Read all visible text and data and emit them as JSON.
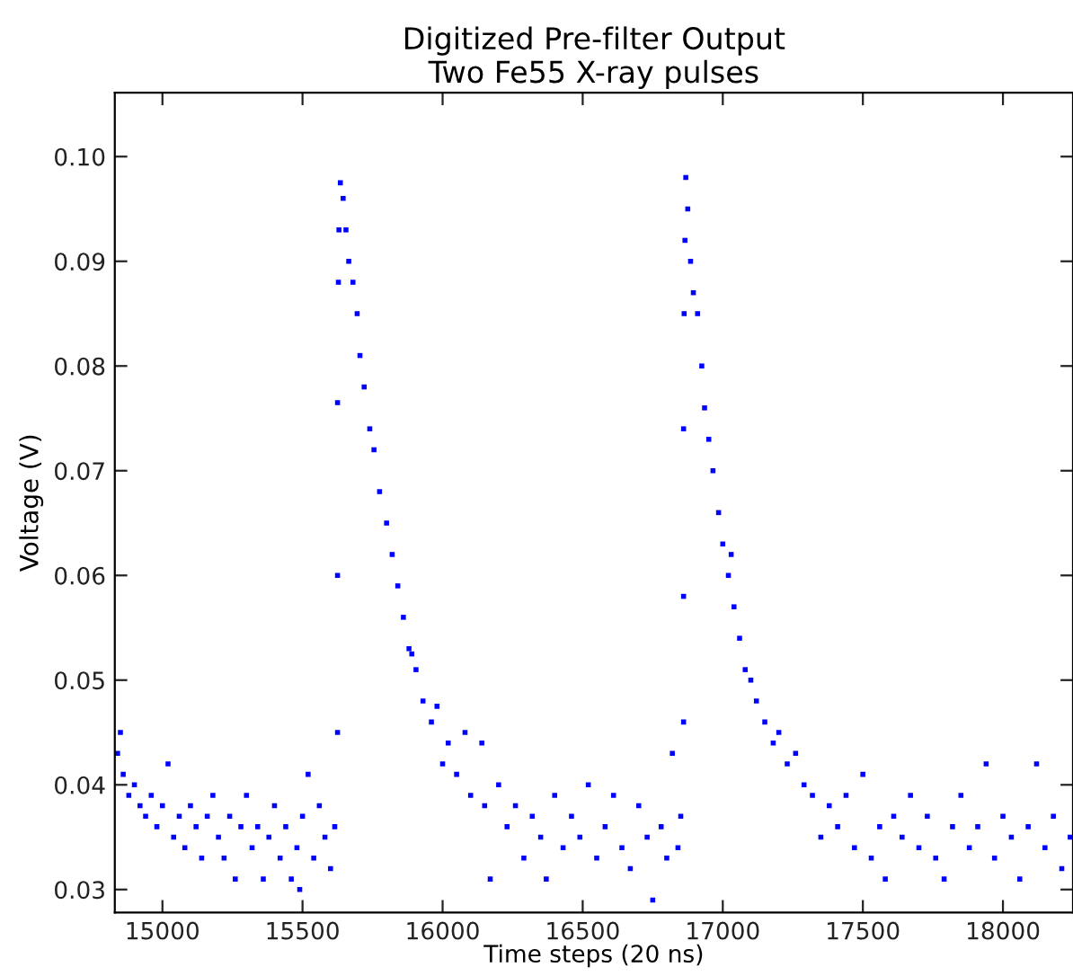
{
  "chart_data": {
    "type": "scatter",
    "title": "Digitized Pre-filter Output\nTwo Fe55 X-ray pulses",
    "xlabel": "Time steps (20 ns)",
    "ylabel": "Voltage (V)",
    "xlim": [
      14830,
      18250
    ],
    "ylim": [
      0.0278,
      0.1061
    ],
    "xticks": [
      15000,
      15500,
      16000,
      16500,
      17000,
      17500,
      18000
    ],
    "yticks": [
      {
        "value": 0.03,
        "label": "0.03"
      },
      {
        "value": 0.04,
        "label": "0.04"
      },
      {
        "value": 0.05,
        "label": "0.05"
      },
      {
        "value": 0.06,
        "label": "0.06"
      },
      {
        "value": 0.07,
        "label": "0.07"
      },
      {
        "value": 0.08,
        "label": "0.08"
      },
      {
        "value": 0.09,
        "label": "0.09"
      },
      {
        "value": 0.1,
        "label": "0.10"
      }
    ],
    "grid": false,
    "marker": "square",
    "series": [
      {
        "color": "#0000ff",
        "x": [
          14840,
          14850,
          14860,
          14880,
          14900,
          14920,
          14940,
          14960,
          14980,
          15000,
          15020,
          15040,
          15060,
          15080,
          15100,
          15120,
          15140,
          15160,
          15180,
          15200,
          15220,
          15240,
          15260,
          15280,
          15300,
          15320,
          15340,
          15360,
          15380,
          15400,
          15420,
          15440,
          15460,
          15480,
          15490,
          15500,
          15520,
          15540,
          15560,
          15580,
          15600,
          15615,
          15625,
          15625,
          15625,
          15628,
          15630,
          15635,
          15645,
          15655,
          15665,
          15680,
          15695,
          15705,
          15720,
          15740,
          15755,
          15775,
          15800,
          15820,
          15840,
          15860,
          15880,
          15890,
          15905,
          15930,
          15960,
          15980,
          16000,
          16020,
          16050,
          16080,
          16100,
          16140,
          16150,
          16170,
          16200,
          16230,
          16260,
          16290,
          16320,
          16350,
          16370,
          16400,
          16430,
          16460,
          16490,
          16520,
          16550,
          16580,
          16610,
          16640,
          16670,
          16700,
          16730,
          16750,
          16780,
          16800,
          16820,
          16840,
          16850,
          16860,
          16860,
          16860,
          16862,
          16865,
          16868,
          16875,
          16885,
          16895,
          16910,
          16925,
          16935,
          16950,
          16965,
          16985,
          17000,
          17020,
          17030,
          17040,
          17060,
          17080,
          17100,
          17120,
          17150,
          17180,
          17200,
          17230,
          17260,
          17290,
          17320,
          17350,
          17380,
          17410,
          17440,
          17470,
          17500,
          17530,
          17560,
          17580,
          17610,
          17640,
          17670,
          17700,
          17730,
          17760,
          17790,
          17820,
          17850,
          17880,
          17910,
          17940,
          17970,
          18000,
          18030,
          18060,
          18090,
          18120,
          18150,
          18180,
          18210,
          18240
        ],
        "values": [
          0.043,
          0.045,
          0.041,
          0.039,
          0.04,
          0.038,
          0.037,
          0.039,
          0.036,
          0.038,
          0.042,
          0.035,
          0.037,
          0.034,
          0.038,
          0.036,
          0.033,
          0.037,
          0.039,
          0.035,
          0.033,
          0.037,
          0.031,
          0.036,
          0.039,
          0.034,
          0.036,
          0.031,
          0.035,
          0.038,
          0.033,
          0.036,
          0.031,
          0.034,
          0.03,
          0.037,
          0.041,
          0.033,
          0.038,
          0.035,
          0.032,
          0.036,
          0.045,
          0.06,
          0.0765,
          0.088,
          0.093,
          0.0975,
          0.096,
          0.093,
          0.09,
          0.088,
          0.085,
          0.081,
          0.078,
          0.074,
          0.072,
          0.068,
          0.065,
          0.062,
          0.059,
          0.056,
          0.053,
          0.0525,
          0.051,
          0.048,
          0.046,
          0.0475,
          0.042,
          0.044,
          0.041,
          0.045,
          0.039,
          0.044,
          0.038,
          0.031,
          0.04,
          0.036,
          0.038,
          0.033,
          0.037,
          0.035,
          0.031,
          0.039,
          0.034,
          0.037,
          0.035,
          0.04,
          0.033,
          0.036,
          0.039,
          0.034,
          0.032,
          0.038,
          0.035,
          0.029,
          0.036,
          0.033,
          0.043,
          0.034,
          0.037,
          0.046,
          0.058,
          0.074,
          0.085,
          0.092,
          0.098,
          0.095,
          0.09,
          0.087,
          0.085,
          0.08,
          0.076,
          0.073,
          0.07,
          0.066,
          0.063,
          0.06,
          0.062,
          0.057,
          0.054,
          0.051,
          0.05,
          0.048,
          0.046,
          0.044,
          0.045,
          0.042,
          0.043,
          0.04,
          0.039,
          0.035,
          0.038,
          0.036,
          0.039,
          0.034,
          0.041,
          0.033,
          0.036,
          0.031,
          0.037,
          0.035,
          0.039,
          0.034,
          0.037,
          0.033,
          0.031,
          0.036,
          0.039,
          0.034,
          0.036,
          0.042,
          0.033,
          0.037,
          0.035,
          0.031,
          0.036,
          0.042,
          0.034,
          0.037,
          0.032,
          0.035
        ]
      }
    ]
  }
}
